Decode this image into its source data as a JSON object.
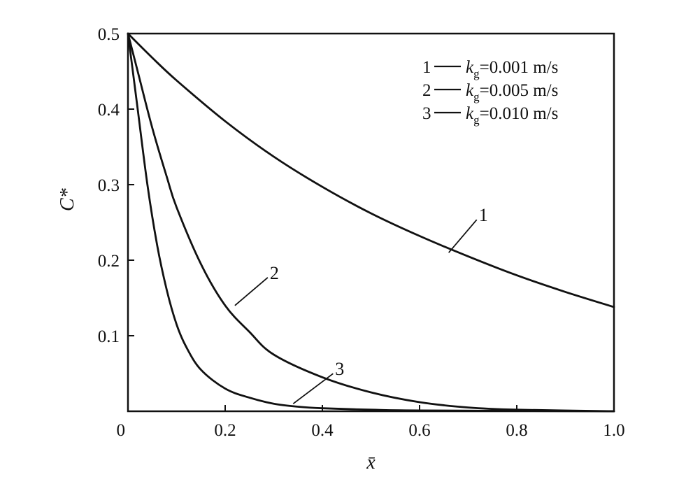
{
  "chart_data": {
    "type": "line",
    "xlabel": "x̄",
    "ylabel": "C*",
    "xlim": [
      0,
      1.0
    ],
    "ylim": [
      0,
      0.5
    ],
    "x_ticks": [
      "0",
      "0.2",
      "0.4",
      "0.6",
      "0.8",
      "1.0"
    ],
    "y_ticks": [
      "0.1",
      "0.2",
      "0.3",
      "0.4",
      "0.5"
    ],
    "grid": false,
    "legend_position": "top-right",
    "legend": [
      {
        "marker": "1",
        "symbol": "k",
        "subscript": "g",
        "value": "=0.001 m/s"
      },
      {
        "marker": "2",
        "symbol": "k",
        "subscript": "g",
        "value": "=0.005 m/s"
      },
      {
        "marker": "3",
        "symbol": "k",
        "subscript": "g",
        "value": "=0.010 m/s"
      }
    ],
    "series": [
      {
        "label": "1",
        "x": [
          0.0,
          0.05,
          0.1,
          0.2,
          0.3,
          0.4,
          0.5,
          0.6,
          0.7,
          0.8,
          0.9,
          1.0
        ],
        "y": [
          0.5,
          0.468,
          0.438,
          0.384,
          0.337,
          0.297,
          0.262,
          0.232,
          0.205,
          0.18,
          0.158,
          0.138
        ]
      },
      {
        "label": "2",
        "x": [
          0.0,
          0.02,
          0.05,
          0.08,
          0.1,
          0.15,
          0.2,
          0.25,
          0.3,
          0.4,
          0.5,
          0.6,
          0.7,
          0.8,
          1.0
        ],
        "y": [
          0.5,
          0.45,
          0.375,
          0.31,
          0.27,
          0.195,
          0.14,
          0.105,
          0.075,
          0.045,
          0.025,
          0.012,
          0.005,
          0.002,
          0.0
        ]
      },
      {
        "label": "3",
        "x": [
          0.0,
          0.02,
          0.04,
          0.06,
          0.08,
          0.1,
          0.12,
          0.15,
          0.2,
          0.25,
          0.3,
          0.35,
          0.4,
          0.5,
          0.6,
          1.0
        ],
        "y": [
          0.5,
          0.4,
          0.3,
          0.22,
          0.16,
          0.115,
          0.085,
          0.055,
          0.03,
          0.018,
          0.01,
          0.006,
          0.004,
          0.002,
          0.001,
          0.0
        ]
      }
    ],
    "curve_labels": [
      {
        "text": "1",
        "x": 0.66,
        "y": 0.21
      },
      {
        "text": "2",
        "x": 0.22,
        "y": 0.14
      },
      {
        "text": "3",
        "x": 0.34,
        "y": 0.01
      }
    ]
  }
}
